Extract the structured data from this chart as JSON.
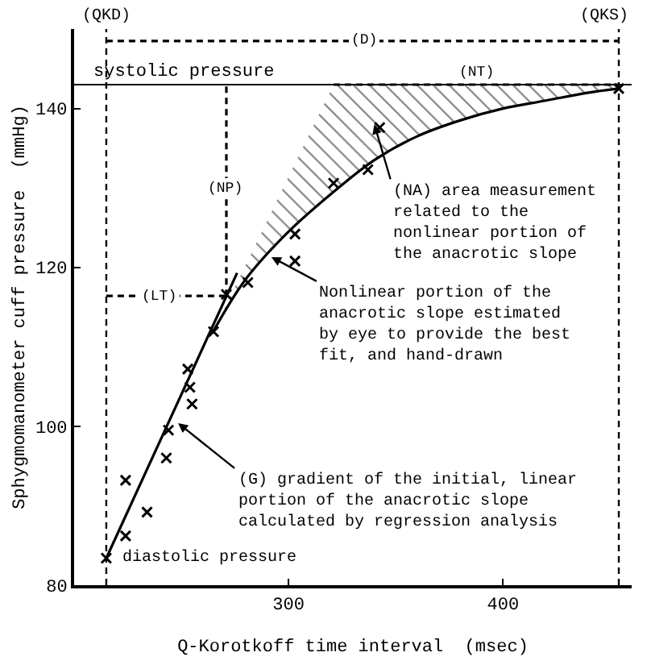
{
  "chart_data": {
    "type": "scatter",
    "xlabel": "Q-Korotkoff time interval  (msec)",
    "ylabel": "Sphygmomanometer cuff pressure  (mmHg)",
    "xlim": [
      200,
      460
    ],
    "ylim": [
      80,
      150
    ],
    "xticks": [
      300,
      400
    ],
    "yticks": [
      80,
      100,
      120,
      140
    ],
    "series": [
      {
        "marker": "cross",
        "color": "#000000",
        "x": [
          215,
          224,
          234,
          224,
          243,
          244,
          255,
          254,
          253,
          265,
          271,
          281,
          303,
          303,
          321,
          337,
          342.5,
          454
        ],
        "values": [
          83.4,
          86.2,
          89.2,
          93.2,
          96,
          99.5,
          102.8,
          104.9,
          107.2,
          111.9,
          116.6,
          118.1,
          120.8,
          124.2,
          130.6,
          132.3,
          137.6,
          142.5
        ]
      },
      {
        "type": "line",
        "marker": "none",
        "line_style": "solid",
        "color": "#000000",
        "x": [
          215,
          276
        ],
        "values": [
          83.4,
          119.3
        ]
      },
      {
        "type": "line",
        "marker": "none",
        "line_style": "solid",
        "color": "#000000",
        "x": [
          265,
          280,
          300,
          321,
          340,
          360,
          380,
          400,
          420,
          440,
          454
        ],
        "values": [
          112,
          118.5,
          124.5,
          129.5,
          133.5,
          136.5,
          138.5,
          140,
          141,
          142,
          142.5
        ],
        "lower": [
          112,
          118.5,
          124.5,
          129.5,
          133.5,
          136.5,
          138.5,
          140,
          141,
          142,
          142.5
        ],
        "upper": [
          112,
          120.3,
          131.4,
          143,
          143,
          143,
          143,
          143,
          143,
          143,
          143
        ]
      },
      {
        "type": "line",
        "marker": "none",
        "line_style": "dashed",
        "color": "#000000",
        "x": [
          215,
          454
        ],
        "values": [
          148.5,
          148.5
        ]
      },
      {
        "type": "line",
        "marker": "none",
        "line_style": "dashed",
        "color": "#000000",
        "x": [
          321,
          454
        ],
        "values": [
          143,
          143
        ]
      },
      {
        "type": "line",
        "marker": "none",
        "line_style": "dashed",
        "color": "#000000",
        "x": [
          271,
          271
        ],
        "values": [
          116.4,
          143
        ]
      },
      {
        "type": "line",
        "marker": "none",
        "line_style": "dashed",
        "color": "#000000",
        "x": [
          215,
          271
        ],
        "values": [
          116.4,
          116.4
        ]
      }
    ],
    "ref_lines": [
      {
        "axis": "y",
        "value": 143,
        "label": "systolic pressure",
        "line_style": "solid",
        "color": "#000000"
      },
      {
        "axis": "x",
        "value": 215,
        "label": "(QKD)",
        "line_style": "dashed",
        "color": "#000000"
      },
      {
        "axis": "x",
        "value": 454,
        "label": "(QKS)",
        "line_style": "dashed",
        "color": "#000000"
      }
    ],
    "annotations": [
      {
        "text": "(D)",
        "x": 335,
        "y": 148.5
      },
      {
        "text": "(NT)",
        "x": 388,
        "y": 143
      },
      {
        "text": "(NP)",
        "x": 271,
        "y": 130
      },
      {
        "text": "(LT)",
        "x": 240,
        "y": 116.4
      },
      {
        "text": "(NA) area measurement\nrelated to the\nnonlinear portion of\nthe anacrotic slope",
        "x": 340,
        "y": 138
      },
      {
        "text": "Nonlinear portion of the\nanacrotic slope estimated\nby eye to provide the best\nfit, and hand-drawn",
        "x": 292,
        "y": 121.3
      },
      {
        "text": "(G) gradient of the initial, linear\nportion of the anacrotic slope\ncalculated by regression analysis",
        "x": 248.5,
        "y": 100.4
      },
      {
        "text": "diastolic pressure",
        "x": 215,
        "y": 83.4
      }
    ]
  }
}
